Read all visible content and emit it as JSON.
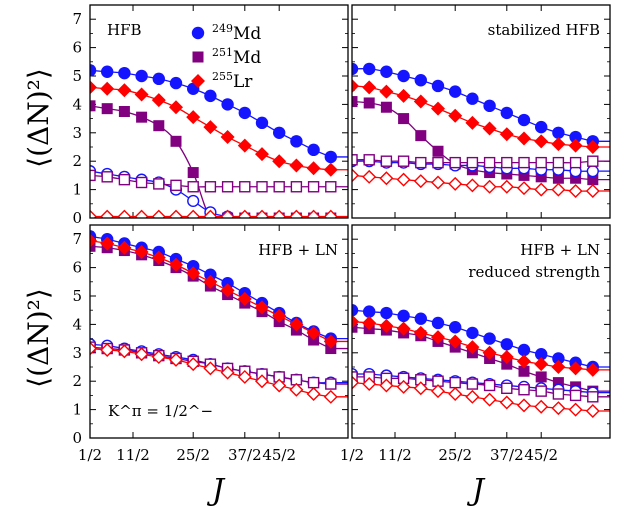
{
  "colors": {
    "Md249": "#1414ff",
    "Md251": "#800080",
    "Lr255": "#ff0000",
    "axis": "#000000"
  },
  "shared": {
    "ylabel": "⟨(ΔN)²⟩",
    "xlabel": "J",
    "xtick_labels": [
      "1/2",
      "11/2",
      "25/2",
      "37/2",
      "45/2"
    ],
    "ytick_labels_top": [
      "0",
      "1",
      "2",
      "3",
      "4",
      "5",
      "6",
      "7"
    ],
    "ytick_labels_bottom": [
      "0",
      "1",
      "2",
      "3",
      "4",
      "5",
      "6",
      "7"
    ],
    "legend": [
      {
        "sup": "249",
        "name": "Md",
        "marker": "circle"
      },
      {
        "sup": "251",
        "name": "Md",
        "marker": "square"
      },
      {
        "sup": "255",
        "name": "Lr",
        "marker": "diamond"
      }
    ],
    "kpi_label": "K^π = 1/2^−"
  },
  "chart_data": [
    {
      "type": "line",
      "label_lines": [
        "HFB"
      ],
      "xlim": [
        0.5,
        30.5
      ],
      "ylim": [
        0,
        7.5
      ],
      "grid": false,
      "x": [
        0.5,
        2.5,
        4.5,
        6.5,
        8.5,
        10.5,
        12.5,
        14.5,
        16.5,
        18.5,
        20.5,
        22.5,
        24.5,
        26.5,
        28.5
      ],
      "series": [
        {
          "name": "249Md filled",
          "color_key": "Md249",
          "marker": "circle",
          "filled": true,
          "values": [
            5.2,
            5.15,
            5.1,
            5.0,
            4.9,
            4.75,
            4.55,
            4.3,
            4.0,
            3.7,
            3.35,
            3.0,
            2.7,
            2.4,
            2.15
          ]
        },
        {
          "name": "251Md filled",
          "color_key": "Md251",
          "marker": "square",
          "filled": true,
          "values": [
            3.95,
            3.85,
            3.75,
            3.55,
            3.25,
            2.7,
            1.6,
            0,
            0,
            0,
            0,
            0,
            0,
            0,
            0
          ]
        },
        {
          "name": "255Lr filled",
          "color_key": "Lr255",
          "marker": "diamond",
          "filled": true,
          "values": [
            4.6,
            4.55,
            4.5,
            4.35,
            4.15,
            3.9,
            3.55,
            3.2,
            2.85,
            2.55,
            2.25,
            2.0,
            1.85,
            1.75,
            1.7
          ]
        },
        {
          "name": "249Md open",
          "color_key": "Md249",
          "marker": "circle",
          "filled": false,
          "values": [
            1.65,
            1.55,
            1.45,
            1.35,
            1.25,
            1.0,
            0.6,
            0.2,
            0.05,
            0,
            0,
            0,
            0,
            0,
            0
          ]
        },
        {
          "name": "251Md open",
          "color_key": "Md251",
          "marker": "square",
          "filled": false,
          "values": [
            1.5,
            1.45,
            1.35,
            1.25,
            1.2,
            1.15,
            1.1,
            1.1,
            1.1,
            1.1,
            1.1,
            1.1,
            1.1,
            1.1,
            1.1
          ]
        },
        {
          "name": "255Lr open",
          "color_key": "Lr255",
          "marker": "diamond",
          "filled": false,
          "values": [
            0.05,
            0.05,
            0.05,
            0.05,
            0.05,
            0.05,
            0.05,
            0.05,
            0.05,
            0.05,
            0.05,
            0.05,
            0.05,
            0.05,
            0.05
          ]
        }
      ]
    },
    {
      "type": "line",
      "label_lines": [
        "stabilized HFB"
      ],
      "xlim": [
        0.5,
        30.5
      ],
      "ylim": [
        0,
        7.5
      ],
      "grid": false,
      "x": [
        0.5,
        2.5,
        4.5,
        6.5,
        8.5,
        10.5,
        12.5,
        14.5,
        16.5,
        18.5,
        20.5,
        22.5,
        24.5,
        26.5,
        28.5
      ],
      "series": [
        {
          "name": "249Md filled",
          "color_key": "Md249",
          "marker": "circle",
          "filled": true,
          "values": [
            5.25,
            5.25,
            5.15,
            5.0,
            4.85,
            4.65,
            4.45,
            4.2,
            3.95,
            3.7,
            3.45,
            3.2,
            3.0,
            2.85,
            2.7
          ]
        },
        {
          "name": "251Md filled",
          "color_key": "Md251",
          "marker": "square",
          "filled": true,
          "values": [
            4.1,
            4.05,
            3.9,
            3.5,
            2.9,
            2.35,
            1.9,
            1.7,
            1.6,
            1.55,
            1.5,
            1.45,
            1.4,
            1.4,
            1.35
          ]
        },
        {
          "name": "255Lr filled",
          "color_key": "Lr255",
          "marker": "diamond",
          "filled": true,
          "values": [
            4.65,
            4.6,
            4.45,
            4.3,
            4.1,
            3.85,
            3.6,
            3.35,
            3.15,
            2.95,
            2.8,
            2.7,
            2.6,
            2.55,
            2.5
          ]
        },
        {
          "name": "249Md open",
          "color_key": "Md249",
          "marker": "circle",
          "filled": false,
          "values": [
            2.0,
            2.0,
            1.95,
            1.95,
            1.9,
            1.9,
            1.85,
            1.85,
            1.8,
            1.75,
            1.75,
            1.7,
            1.7,
            1.65,
            1.65
          ]
        },
        {
          "name": "251Md open",
          "color_key": "Md251",
          "marker": "square",
          "filled": false,
          "values": [
            2.05,
            2.05,
            2.0,
            2.0,
            1.95,
            1.95,
            1.95,
            1.95,
            1.95,
            1.95,
            1.95,
            1.95,
            1.95,
            1.95,
            2.0
          ]
        },
        {
          "name": "255Lr open",
          "color_key": "Lr255",
          "marker": "diamond",
          "filled": false,
          "values": [
            1.5,
            1.45,
            1.4,
            1.35,
            1.3,
            1.25,
            1.2,
            1.15,
            1.1,
            1.1,
            1.05,
            1.0,
            1.0,
            0.95,
            0.95
          ]
        }
      ]
    },
    {
      "type": "line",
      "label_lines": [
        "HFB + LN"
      ],
      "xlim": [
        0.5,
        30.5
      ],
      "ylim": [
        0,
        7.5
      ],
      "grid": false,
      "x": [
        0.5,
        2.5,
        4.5,
        6.5,
        8.5,
        10.5,
        12.5,
        14.5,
        16.5,
        18.5,
        20.5,
        22.5,
        24.5,
        26.5,
        28.5
      ],
      "series": [
        {
          "name": "249Md filled",
          "color_key": "Md249",
          "marker": "circle",
          "filled": true,
          "values": [
            7.1,
            7.0,
            6.85,
            6.7,
            6.55,
            6.3,
            6.05,
            5.75,
            5.45,
            5.1,
            4.75,
            4.4,
            4.05,
            3.75,
            3.5
          ]
        },
        {
          "name": "251Md filled",
          "color_key": "Md251",
          "marker": "square",
          "filled": true,
          "values": [
            6.75,
            6.7,
            6.6,
            6.45,
            6.25,
            6.0,
            5.7,
            5.35,
            5.05,
            4.75,
            4.45,
            4.1,
            3.8,
            3.45,
            3.15
          ]
        },
        {
          "name": "255Lr filled",
          "color_key": "Lr255",
          "marker": "diamond",
          "filled": true,
          "values": [
            6.95,
            6.85,
            6.7,
            6.55,
            6.35,
            6.1,
            5.8,
            5.5,
            5.2,
            4.9,
            4.6,
            4.3,
            4.0,
            3.7,
            3.4
          ]
        },
        {
          "name": "249Md open",
          "color_key": "Md249",
          "marker": "circle",
          "filled": false,
          "values": [
            3.3,
            3.25,
            3.15,
            3.05,
            2.95,
            2.85,
            2.75,
            2.6,
            2.45,
            2.35,
            2.25,
            2.15,
            2.05,
            1.95,
            1.95
          ]
        },
        {
          "name": "251Md open",
          "color_key": "Md251",
          "marker": "square",
          "filled": false,
          "values": [
            3.2,
            3.15,
            3.1,
            3.0,
            2.9,
            2.8,
            2.7,
            2.6,
            2.45,
            2.35,
            2.25,
            2.15,
            2.05,
            1.95,
            1.9
          ]
        },
        {
          "name": "255Lr open",
          "color_key": "Lr255",
          "marker": "diamond",
          "filled": false,
          "values": [
            3.15,
            3.1,
            3.05,
            2.95,
            2.85,
            2.75,
            2.6,
            2.45,
            2.3,
            2.15,
            2.0,
            1.85,
            1.7,
            1.55,
            1.45
          ]
        }
      ]
    },
    {
      "type": "line",
      "label_lines": [
        "HFB + LN",
        "reduced strength"
      ],
      "xlim": [
        0.5,
        30.5
      ],
      "ylim": [
        0,
        7.5
      ],
      "grid": false,
      "x": [
        0.5,
        2.5,
        4.5,
        6.5,
        8.5,
        10.5,
        12.5,
        14.5,
        16.5,
        18.5,
        20.5,
        22.5,
        24.5,
        26.5,
        28.5
      ],
      "series": [
        {
          "name": "249Md filled",
          "color_key": "Md249",
          "marker": "circle",
          "filled": true,
          "values": [
            4.5,
            4.45,
            4.4,
            4.3,
            4.2,
            4.05,
            3.9,
            3.7,
            3.5,
            3.3,
            3.1,
            2.95,
            2.8,
            2.65,
            2.5
          ]
        },
        {
          "name": "251Md filled",
          "color_key": "Md251",
          "marker": "square",
          "filled": true,
          "values": [
            3.9,
            3.85,
            3.8,
            3.7,
            3.6,
            3.4,
            3.2,
            3.0,
            2.8,
            2.6,
            2.35,
            2.15,
            1.95,
            1.8,
            1.65
          ]
        },
        {
          "name": "255Lr filled",
          "color_key": "Lr255",
          "marker": "diamond",
          "filled": true,
          "values": [
            4.1,
            4.05,
            3.95,
            3.85,
            3.7,
            3.55,
            3.4,
            3.2,
            3.0,
            2.85,
            2.7,
            2.6,
            2.5,
            2.45,
            2.4
          ]
        },
        {
          "name": "249Md open",
          "color_key": "Md249",
          "marker": "circle",
          "filled": false,
          "values": [
            2.25,
            2.25,
            2.2,
            2.15,
            2.1,
            2.05,
            2.0,
            1.95,
            1.9,
            1.85,
            1.8,
            1.75,
            1.7,
            1.65,
            1.6
          ]
        },
        {
          "name": "251Md open",
          "color_key": "Md251",
          "marker": "square",
          "filled": false,
          "values": [
            2.15,
            2.15,
            2.1,
            2.1,
            2.05,
            2.0,
            1.95,
            1.9,
            1.85,
            1.75,
            1.7,
            1.65,
            1.55,
            1.5,
            1.45
          ]
        },
        {
          "name": "255Lr open",
          "color_key": "Lr255",
          "marker": "diamond",
          "filled": false,
          "values": [
            1.95,
            1.9,
            1.85,
            1.8,
            1.75,
            1.65,
            1.55,
            1.45,
            1.35,
            1.25,
            1.15,
            1.1,
            1.05,
            1.0,
            0.95
          ]
        }
      ]
    }
  ]
}
